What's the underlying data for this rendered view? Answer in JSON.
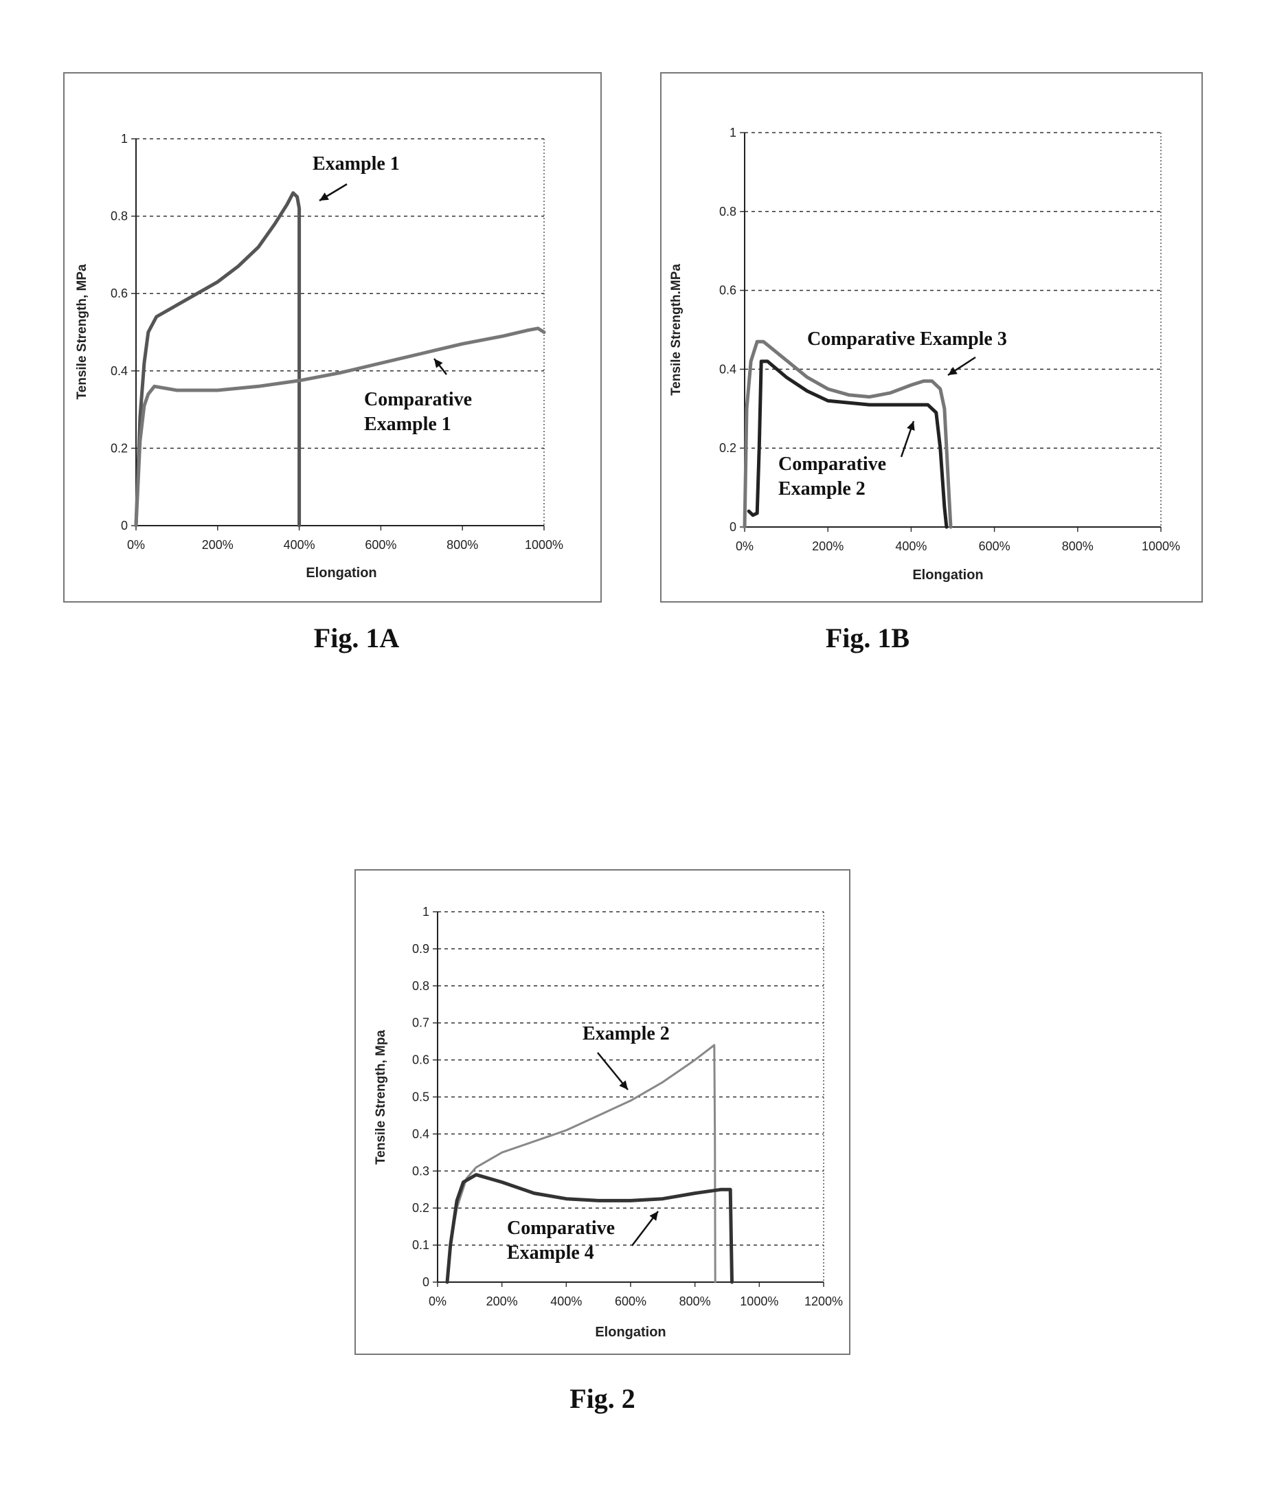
{
  "figures": [
    {
      "caption": "Fig. 1A"
    },
    {
      "caption": "Fig. 1B"
    },
    {
      "caption": "Fig. 2"
    }
  ],
  "chart_data": [
    {
      "type": "line",
      "xlabel": "Elongation",
      "ylabel": "Tensile Strength, MPa",
      "xlim": [
        0,
        1000
      ],
      "ylim": [
        0,
        1
      ],
      "xticks": [
        "0%",
        "200%",
        "400%",
        "600%",
        "800%",
        "1000%"
      ],
      "yticks": [
        "0",
        "0.2",
        "0.4",
        "0.6",
        "0.8",
        "1"
      ],
      "grid": "horizontal dashed",
      "annotations": [
        {
          "text": "Example 1",
          "series": 0
        },
        {
          "text": "Comparative\nExample 1",
          "series": 1
        }
      ],
      "series": [
        {
          "points": [
            [
              0,
              0
            ],
            [
              10,
              0.28
            ],
            [
              20,
              0.42
            ],
            [
              30,
              0.5
            ],
            [
              50,
              0.54
            ],
            [
              100,
              0.57
            ],
            [
              150,
              0.6
            ],
            [
              200,
              0.63
            ],
            [
              250,
              0.67
            ],
            [
              300,
              0.72
            ],
            [
              340,
              0.78
            ],
            [
              370,
              0.83
            ],
            [
              385,
              0.86
            ],
            [
              395,
              0.85
            ],
            [
              400,
              0.82
            ],
            [
              400,
              0
            ]
          ],
          "color": "#555555"
        },
        {
          "points": [
            [
              0,
              0
            ],
            [
              10,
              0.22
            ],
            [
              20,
              0.31
            ],
            [
              30,
              0.34
            ],
            [
              45,
              0.36
            ],
            [
              100,
              0.35
            ],
            [
              200,
              0.35
            ],
            [
              300,
              0.36
            ],
            [
              400,
              0.375
            ],
            [
              500,
              0.395
            ],
            [
              600,
              0.42
            ],
            [
              700,
              0.445
            ],
            [
              800,
              0.47
            ],
            [
              900,
              0.49
            ],
            [
              960,
              0.505
            ],
            [
              985,
              0.51
            ],
            [
              1000,
              0.5
            ]
          ],
          "color": "#777777"
        }
      ]
    },
    {
      "type": "line",
      "xlabel": "Elongation",
      "ylabel": "Tensile Strength.MPa",
      "xlim": [
        0,
        1000
      ],
      "ylim": [
        0,
        1
      ],
      "xticks": [
        "0%",
        "200%",
        "400%",
        "600%",
        "800%",
        "1000%"
      ],
      "yticks": [
        "0",
        "0.2",
        "0.4",
        "0.6",
        "0.8",
        "1"
      ],
      "grid": "horizontal dashed",
      "annotations": [
        {
          "text": "Comparative Example 3",
          "series": 0
        },
        {
          "text": "Comparative\nExample 2",
          "series": 1
        }
      ],
      "series": [
        {
          "points": [
            [
              0,
              0
            ],
            [
              5,
              0.3
            ],
            [
              15,
              0.42
            ],
            [
              30,
              0.47
            ],
            [
              45,
              0.47
            ],
            [
              80,
              0.44
            ],
            [
              150,
              0.38
            ],
            [
              200,
              0.35
            ],
            [
              250,
              0.335
            ],
            [
              300,
              0.33
            ],
            [
              350,
              0.34
            ],
            [
              400,
              0.36
            ],
            [
              430,
              0.37
            ],
            [
              450,
              0.37
            ],
            [
              470,
              0.35
            ],
            [
              480,
              0.3
            ],
            [
              490,
              0.1
            ],
            [
              495,
              0
            ]
          ],
          "color": "#777777"
        },
        {
          "points": [
            [
              10,
              0.04
            ],
            [
              20,
              0.03
            ],
            [
              30,
              0.035
            ],
            [
              35,
              0.2
            ],
            [
              40,
              0.42
            ],
            [
              55,
              0.42
            ],
            [
              100,
              0.38
            ],
            [
              150,
              0.345
            ],
            [
              200,
              0.32
            ],
            [
              300,
              0.31
            ],
            [
              400,
              0.31
            ],
            [
              440,
              0.31
            ],
            [
              460,
              0.29
            ],
            [
              470,
              0.2
            ],
            [
              480,
              0.05
            ],
            [
              485,
              0
            ]
          ],
          "color": "#222222"
        }
      ]
    },
    {
      "type": "line",
      "xlabel": "Elongation",
      "ylabel": "Tensile Strength, Mpa",
      "xlim": [
        0,
        1200
      ],
      "ylim": [
        0,
        1
      ],
      "xticks": [
        "0%",
        "200%",
        "400%",
        "600%",
        "800%",
        "1000%",
        "1200%"
      ],
      "yticks": [
        "0",
        "0.1",
        "0.2",
        "0.3",
        "0.4",
        "0.5",
        "0.6",
        "0.7",
        "0.8",
        "0.9",
        "1"
      ],
      "grid": "horizontal dashed",
      "annotations": [
        {
          "text": "Example 2",
          "series": 0
        },
        {
          "text": "Comparative\nExample 4",
          "series": 1
        }
      ],
      "series": [
        {
          "points": [
            [
              30,
              0
            ],
            [
              40,
              0.1
            ],
            [
              60,
              0.2
            ],
            [
              90,
              0.28
            ],
            [
              120,
              0.31
            ],
            [
              200,
              0.35
            ],
            [
              300,
              0.38
            ],
            [
              400,
              0.41
            ],
            [
              500,
              0.45
            ],
            [
              600,
              0.49
            ],
            [
              700,
              0.54
            ],
            [
              800,
              0.6
            ],
            [
              860,
              0.64
            ],
            [
              862,
              0.4
            ],
            [
              863,
              0
            ]
          ],
          "color": "#888888"
        },
        {
          "points": [
            [
              30,
              0
            ],
            [
              40,
              0.1
            ],
            [
              60,
              0.22
            ],
            [
              80,
              0.27
            ],
            [
              120,
              0.29
            ],
            [
              200,
              0.27
            ],
            [
              300,
              0.24
            ],
            [
              400,
              0.225
            ],
            [
              500,
              0.22
            ],
            [
              600,
              0.22
            ],
            [
              700,
              0.225
            ],
            [
              800,
              0.24
            ],
            [
              880,
              0.25
            ],
            [
              910,
              0.25
            ],
            [
              915,
              0
            ]
          ],
          "color": "#333333"
        }
      ]
    }
  ]
}
